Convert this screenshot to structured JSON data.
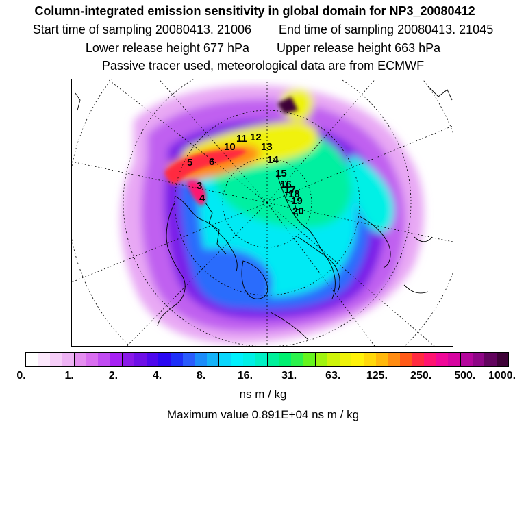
{
  "header": {
    "title": "Column-integrated emission sensitivity in global domain for NP3_20080412",
    "start_label": "Start time of sampling 20080413. 21006",
    "end_label": "End time of sampling 20080413. 21045",
    "lower_label": "Lower release height  677 hPa",
    "upper_label": "Upper release height  663 hPa",
    "tracer_label": "Passive tracer used, meteorological data are from ECMWF"
  },
  "map": {
    "trajectory_labels": [
      "3",
      "4",
      "5",
      "6",
      "10",
      "11",
      "12",
      "13",
      "14",
      "15",
      "16",
      "17",
      "18",
      "19",
      "20"
    ]
  },
  "legend": {
    "colors": [
      "#ffffff",
      "#fce8fc",
      "#f6cef8",
      "#eeb2f4",
      "#e58ef0",
      "#d96ef0",
      "#c14cf2",
      "#a722f4",
      "#8a1ae8",
      "#6e10e6",
      "#4e08ec",
      "#2a08f2",
      "#1e30f8",
      "#2a5cfc",
      "#1c8cfa",
      "#15b2f8",
      "#0ad6fc",
      "#00f0fc",
      "#00f0e6",
      "#00f0c4",
      "#00f09a",
      "#00f070",
      "#2cf24c",
      "#66f41e",
      "#a0f40e",
      "#cef40a",
      "#eef20a",
      "#fff20a",
      "#ffd80a",
      "#ffb80c",
      "#ff8c12",
      "#ff5a18",
      "#ff2a40",
      "#ff1470",
      "#f00898",
      "#d604a0",
      "#b4069c",
      "#8e0686",
      "#62045e",
      "#3e0238"
    ],
    "ticks": [
      "0.",
      "1.",
      "2.",
      "4.",
      "8.",
      "16.",
      "31.",
      "63.",
      "125.",
      "250.",
      "500.",
      "1000."
    ],
    "units": "ns m / kg",
    "max_value_label": "Maximum value  0.891E+04 ns m / kg"
  }
}
